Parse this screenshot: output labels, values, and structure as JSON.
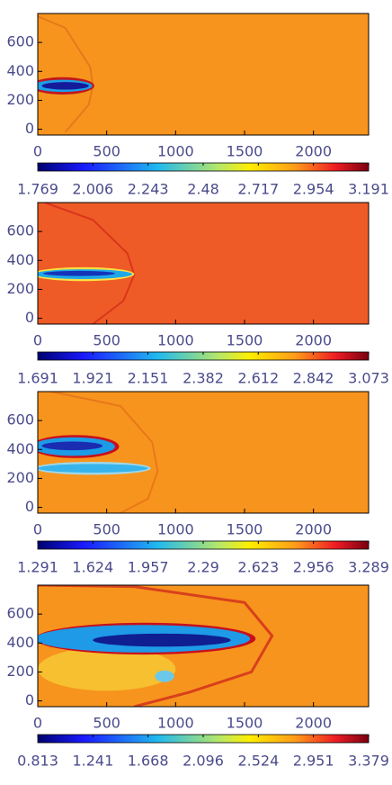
{
  "chart_data": [
    {
      "type": "heatmap",
      "colormap": "jet",
      "background": "#f7941d",
      "xlim": [
        0,
        2400
      ],
      "ylim": [
        -40,
        800
      ],
      "xticks": [
        0,
        500,
        1000,
        1500,
        2000
      ],
      "yticks": [
        0,
        200,
        400,
        600
      ],
      "clim": [
        1.769,
        3.191
      ],
      "cbar_ticks": [
        1.769,
        2.006,
        2.243,
        2.48,
        2.717,
        2.954,
        3.191
      ]
    },
    {
      "type": "heatmap",
      "colormap": "jet",
      "background": "#ef5b26",
      "xlim": [
        0,
        2400
      ],
      "ylim": [
        -40,
        800
      ],
      "xticks": [
        0,
        500,
        1000,
        1500,
        2000
      ],
      "yticks": [
        0,
        200,
        400,
        600
      ],
      "clim": [
        1.691,
        3.073
      ],
      "cbar_ticks": [
        1.691,
        1.921,
        2.151,
        2.382,
        2.612,
        2.842,
        3.073
      ]
    },
    {
      "type": "heatmap",
      "colormap": "jet",
      "background": "#f7941d",
      "xlim": [
        0,
        2400
      ],
      "ylim": [
        -40,
        800
      ],
      "xticks": [
        0,
        500,
        1000,
        1500,
        2000
      ],
      "yticks": [
        0,
        200,
        400,
        600
      ],
      "clim": [
        1.291,
        3.289
      ],
      "cbar_ticks": [
        1.291,
        1.624,
        1.957,
        2.29,
        2.623,
        2.956,
        3.289
      ]
    },
    {
      "type": "heatmap",
      "colormap": "jet",
      "background": "#f7941d",
      "xlim": [
        0,
        2400
      ],
      "ylim": [
        -40,
        800
      ],
      "xticks": [
        0,
        500,
        1000,
        1500,
        2000
      ],
      "yticks": [
        0,
        200,
        400,
        600
      ],
      "clim": [
        0.813,
        3.379
      ],
      "cbar_ticks": [
        0.813,
        1.241,
        1.668,
        2.096,
        2.524,
        2.951,
        3.379
      ]
    }
  ]
}
